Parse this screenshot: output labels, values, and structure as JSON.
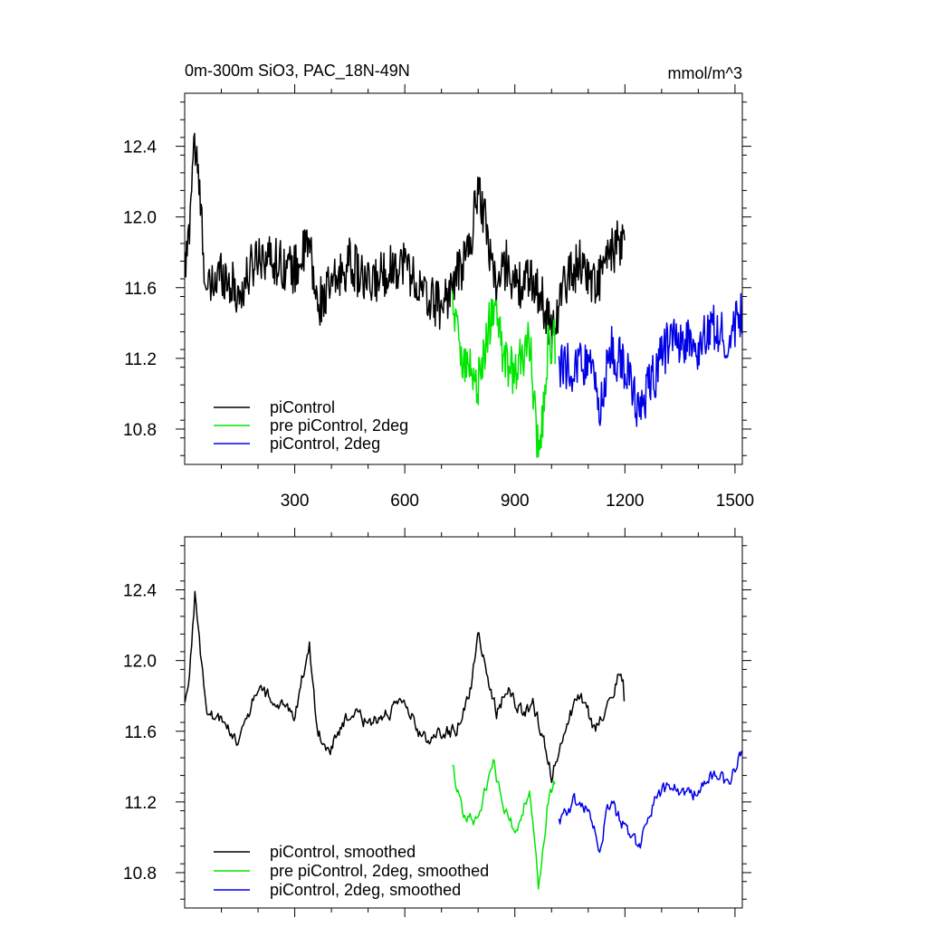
{
  "header": {
    "title": "0m-300m SiO3, PAC_18N-49N",
    "units": "mmol/m^3"
  },
  "colors": {
    "pic": "#000000",
    "pre": "#00e600",
    "p2": "#0000e6"
  },
  "chart_data": [
    {
      "type": "line",
      "xlim": [
        0,
        1520
      ],
      "ylim": [
        10.6,
        12.7
      ],
      "yticks": [
        10.8,
        11.2,
        11.6,
        12.0,
        12.4
      ],
      "ytick_labels": [
        "10.8",
        "11.2",
        "11.6",
        "12.0",
        "12.4"
      ],
      "xticks": [
        300,
        600,
        900,
        1200,
        1500
      ],
      "xtick_labels": [
        "300",
        "600",
        "900",
        "1200",
        "1500"
      ],
      "legend_position": "bottom-left",
      "series": [
        {
          "name": "piControl",
          "color": "#000000",
          "x_start": 1,
          "x_end": 1200,
          "anchors": [
            [
              1,
              11.7
            ],
            [
              10,
              11.85
            ],
            [
              25,
              12.45
            ],
            [
              40,
              12.15
            ],
            [
              60,
              11.55
            ],
            [
              100,
              11.7
            ],
            [
              150,
              11.55
            ],
            [
              200,
              11.8
            ],
            [
              250,
              11.75
            ],
            [
              300,
              11.7
            ],
            [
              340,
              11.85
            ],
            [
              360,
              11.5
            ],
            [
              400,
              11.6
            ],
            [
              450,
              11.75
            ],
            [
              500,
              11.6
            ],
            [
              550,
              11.7
            ],
            [
              600,
              11.75
            ],
            [
              650,
              11.55
            ],
            [
              700,
              11.5
            ],
            [
              740,
              11.65
            ],
            [
              780,
              11.85
            ],
            [
              800,
              12.2
            ],
            [
              850,
              11.6
            ],
            [
              880,
              11.75
            ],
            [
              900,
              11.6
            ],
            [
              950,
              11.65
            ],
            [
              980,
              11.5
            ],
            [
              1000,
              11.35
            ],
            [
              1040,
              11.65
            ],
            [
              1080,
              11.75
            ],
            [
              1120,
              11.6
            ],
            [
              1150,
              11.75
            ],
            [
              1180,
              11.85
            ],
            [
              1200,
              11.8
            ]
          ]
        },
        {
          "name": "pre piControl, 2deg",
          "color": "#00e600",
          "x_start": 730,
          "x_end": 1010,
          "anchors": [
            [
              730,
              11.5
            ],
            [
              760,
              11.2
            ],
            [
              800,
              11.05
            ],
            [
              840,
              11.5
            ],
            [
              870,
              11.2
            ],
            [
              900,
              11.1
            ],
            [
              940,
              11.3
            ],
            [
              965,
              10.6
            ],
            [
              990,
              11.25
            ],
            [
              1010,
              11.3
            ]
          ]
        },
        {
          "name": "piControl, 2deg",
          "color": "#0000e6",
          "x_start": 1020,
          "x_end": 1520,
          "anchors": [
            [
              1020,
              11.15
            ],
            [
              1060,
              11.15
            ],
            [
              1100,
              11.2
            ],
            [
              1130,
              10.9
            ],
            [
              1160,
              11.25
            ],
            [
              1200,
              11.15
            ],
            [
              1240,
              10.9
            ],
            [
              1280,
              11.1
            ],
            [
              1320,
              11.3
            ],
            [
              1360,
              11.3
            ],
            [
              1400,
              11.25
            ],
            [
              1440,
              11.4
            ],
            [
              1480,
              11.3
            ],
            [
              1520,
              11.45
            ]
          ]
        }
      ]
    },
    {
      "type": "line",
      "xlim": [
        0,
        1520
      ],
      "ylim": [
        10.6,
        12.7
      ],
      "yticks": [
        10.8,
        11.2,
        11.6,
        12.0,
        12.4
      ],
      "ytick_labels": [
        "10.8",
        "11.2",
        "11.6",
        "12.0",
        "12.4"
      ],
      "xticks": [
        300,
        600,
        900,
        1200,
        1500
      ],
      "legend_position": "bottom-left",
      "series": [
        {
          "name": "piControl, smoothed",
          "color": "#000000",
          "x_start": 1,
          "x_end": 1200,
          "anchors": [
            [
              1,
              11.75
            ],
            [
              10,
              11.85
            ],
            [
              28,
              12.38
            ],
            [
              45,
              12.0
            ],
            [
              60,
              11.7
            ],
            [
              100,
              11.65
            ],
            [
              150,
              11.55
            ],
            [
              200,
              11.85
            ],
            [
              250,
              11.75
            ],
            [
              300,
              11.7
            ],
            [
              340,
              12.1
            ],
            [
              360,
              11.6
            ],
            [
              400,
              11.5
            ],
            [
              450,
              11.7
            ],
            [
              500,
              11.65
            ],
            [
              550,
              11.7
            ],
            [
              600,
              11.75
            ],
            [
              650,
              11.55
            ],
            [
              700,
              11.6
            ],
            [
              740,
              11.6
            ],
            [
              780,
              11.85
            ],
            [
              800,
              12.15
            ],
            [
              850,
              11.7
            ],
            [
              880,
              11.85
            ],
            [
              920,
              11.7
            ],
            [
              950,
              11.75
            ],
            [
              980,
              11.55
            ],
            [
              1000,
              11.35
            ],
            [
              1040,
              11.65
            ],
            [
              1080,
              11.8
            ],
            [
              1120,
              11.6
            ],
            [
              1150,
              11.75
            ],
            [
              1180,
              11.9
            ],
            [
              1195,
              11.85
            ],
            [
              1200,
              11.7
            ]
          ]
        },
        {
          "name": "pre piControl, 2deg, smoothed",
          "color": "#00e600",
          "x_start": 730,
          "x_end": 1010,
          "anchors": [
            [
              730,
              11.4
            ],
            [
              760,
              11.1
            ],
            [
              800,
              11.1
            ],
            [
              840,
              11.45
            ],
            [
              870,
              11.15
            ],
            [
              900,
              11.05
            ],
            [
              940,
              11.25
            ],
            [
              965,
              10.7
            ],
            [
              990,
              11.2
            ],
            [
              1010,
              11.3
            ]
          ]
        },
        {
          "name": "piControl, 2deg, smoothed",
          "color": "#0000e6",
          "x_start": 1020,
          "x_end": 1520,
          "anchors": [
            [
              1020,
              11.1
            ],
            [
              1060,
              11.2
            ],
            [
              1100,
              11.15
            ],
            [
              1130,
              10.95
            ],
            [
              1160,
              11.2
            ],
            [
              1200,
              11.05
            ],
            [
              1240,
              10.95
            ],
            [
              1280,
              11.2
            ],
            [
              1320,
              11.3
            ],
            [
              1360,
              11.25
            ],
            [
              1400,
              11.25
            ],
            [
              1440,
              11.35
            ],
            [
              1480,
              11.3
            ],
            [
              1520,
              11.5
            ]
          ]
        }
      ]
    }
  ]
}
